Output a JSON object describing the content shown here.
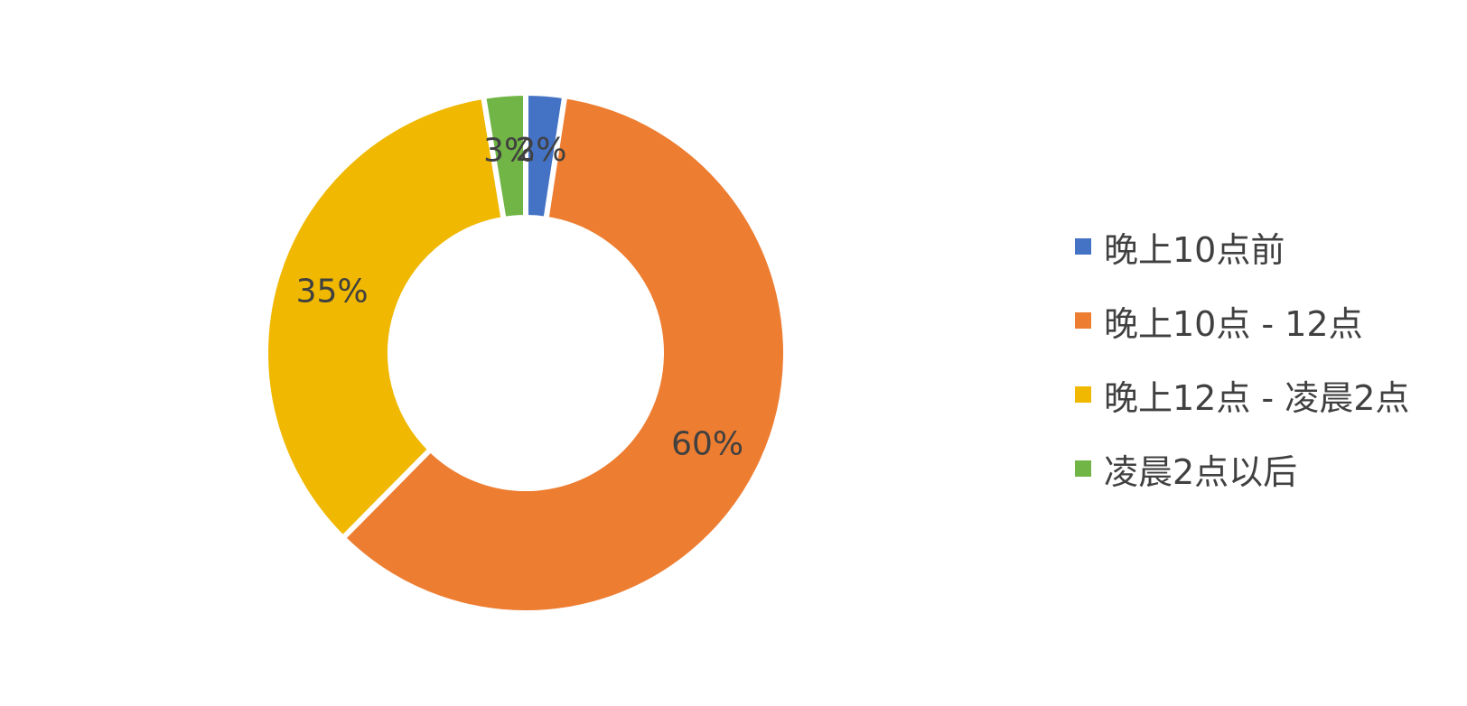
{
  "chart_data": {
    "type": "pie",
    "variant": "donut",
    "categories": [
      "晚上10点前",
      "晚上10点 - 12点",
      "晚上12点 - 凌晨2点",
      "凌晨2点以后"
    ],
    "values": [
      2.4,
      60,
      35,
      2.6
    ],
    "data_labels": [
      "2%",
      "60%",
      "35%",
      "3%"
    ],
    "colors": [
      "#4472C4",
      "#ED7D31",
      "#F0B800",
      "#70B545"
    ],
    "legend_position": "right",
    "title": ""
  }
}
